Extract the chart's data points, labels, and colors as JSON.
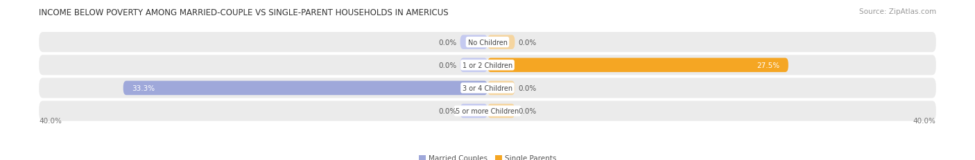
{
  "title": "INCOME BELOW POVERTY AMONG MARRIED-COUPLE VS SINGLE-PARENT HOUSEHOLDS IN AMERICUS",
  "source": "Source: ZipAtlas.com",
  "categories": [
    "No Children",
    "1 or 2 Children",
    "3 or 4 Children",
    "5 or more Children"
  ],
  "married_values": [
    0.0,
    0.0,
    33.3,
    0.0
  ],
  "single_values": [
    0.0,
    27.5,
    0.0,
    0.0
  ],
  "married_color": "#9fa8da",
  "single_color": "#f5a623",
  "married_zero_color": "#c5caf0",
  "single_zero_color": "#f5d5a0",
  "bar_bg_color": "#ebebeb",
  "axis_limit": 40.0,
  "bar_height": 0.62,
  "title_fontsize": 8.5,
  "source_fontsize": 7.5,
  "label_fontsize": 7.5,
  "category_fontsize": 7.0,
  "legend_fontsize": 7.5,
  "axis_label_fontsize": 7.5,
  "background_color": "#ffffff",
  "bar_row_bg": "#ebebeb",
  "min_bar_display": 2.5
}
